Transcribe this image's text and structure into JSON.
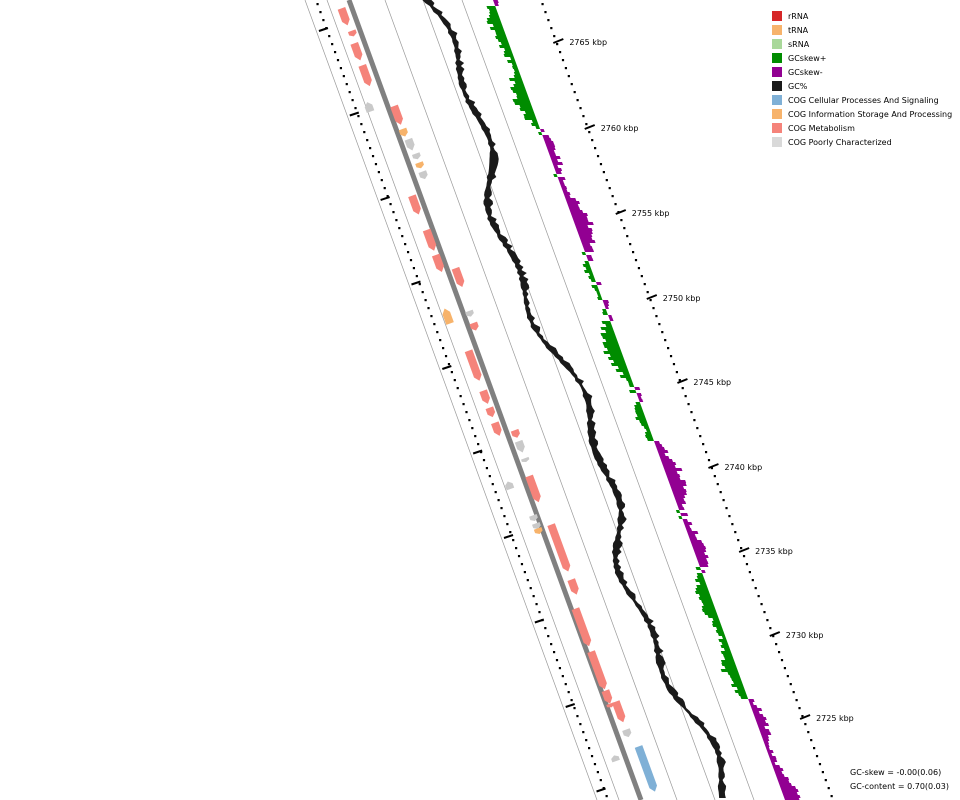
{
  "legend": [
    {
      "label": "rRNA",
      "color": "#d62728"
    },
    {
      "label": "tRNA",
      "color": "#f7b36b"
    },
    {
      "label": "sRNA",
      "color": "#a9d89a"
    },
    {
      "label": "GCskew+",
      "color": "#008c00"
    },
    {
      "label": "GCskew-",
      "color": "#920092"
    },
    {
      "label": "GC%",
      "color": "#1a1a1a"
    },
    {
      "label": "COG Cellular Processes And Signaling",
      "color": "#7fb0d6"
    },
    {
      "label": "COG Information Storage And Processing",
      "color": "#f7b36b"
    },
    {
      "label": "COG Metabolism",
      "color": "#f5837a"
    },
    {
      "label": "COG Poorly Characterized",
      "color": "#d9d9d9"
    }
  ],
  "ticks": [
    "2765 kbp",
    "2760 kbp",
    "2755 kbp",
    "2750 kbp",
    "2745 kbp",
    "2740 kbp",
    "2735 kbp",
    "2730 kbp",
    "2725 kbp"
  ],
  "stats": {
    "gc_skew": "GC-skew = -0.00(0.06)",
    "gc_content": "GC-content = 0.70(0.03)"
  }
}
